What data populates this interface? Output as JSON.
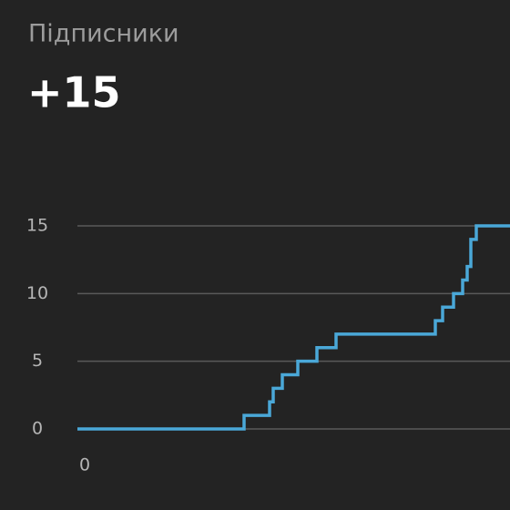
{
  "chart_data": {
    "type": "line",
    "step": "post",
    "title": "Підписники",
    "headline": "+15",
    "x": [
      0,
      183,
      211,
      215,
      225,
      242,
      263,
      284,
      393,
      401,
      413,
      423,
      428,
      432,
      438,
      475
    ],
    "series": [
      {
        "color": "#4aa8d8",
        "values": [
          0,
          1,
          2,
          3,
          4,
          5,
          6,
          7,
          8,
          9,
          10,
          11,
          12,
          14,
          15,
          15
        ]
      }
    ],
    "xlim": [
      0,
      475
    ],
    "xticks": [
      0
    ],
    "ylim": [
      0,
      15
    ],
    "yticks": [
      0,
      5,
      10,
      15
    ],
    "grid": true
  }
}
